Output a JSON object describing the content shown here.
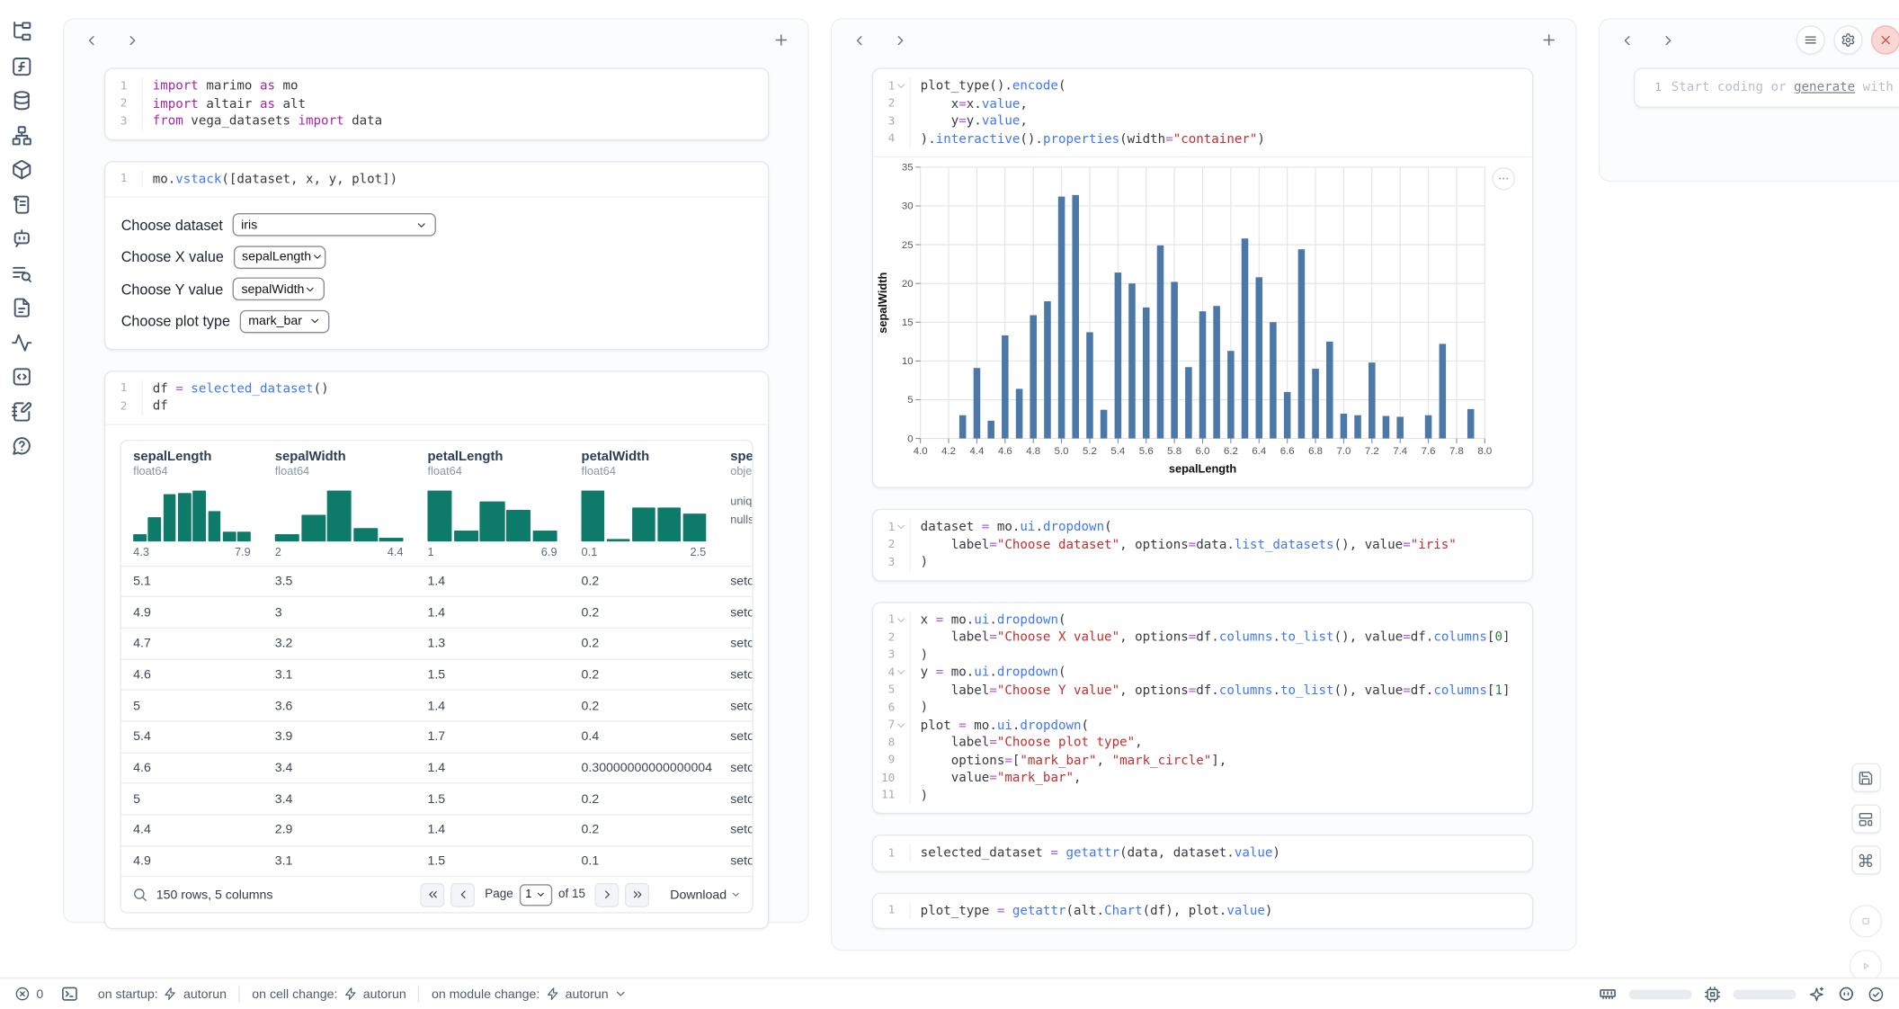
{
  "sidebar": {
    "icons": [
      "file-tree",
      "function-square",
      "database",
      "workflow",
      "package",
      "scroll-text",
      "bot",
      "list-search",
      "file-text",
      "activity",
      "code-square",
      "notebook-pen",
      "help-circle"
    ]
  },
  "panels": {
    "left": {
      "cells": [
        {
          "lines": [
            [
              [
                "kw",
                "import"
              ],
              [
                "pl",
                " marimo "
              ],
              [
                "kw",
                "as"
              ],
              [
                "pl",
                " mo"
              ]
            ],
            [
              [
                "kw",
                "import"
              ],
              [
                "pl",
                " altair "
              ],
              [
                "kw",
                "as"
              ],
              [
                "pl",
                " alt"
              ]
            ],
            [
              [
                "kw",
                "from"
              ],
              [
                "pl",
                " vega_datasets "
              ],
              [
                "kw",
                "import"
              ],
              [
                "pl",
                " data"
              ]
            ]
          ]
        },
        {
          "lines": [
            [
              [
                "pl",
                "mo."
              ],
              [
                "fn",
                "vstack"
              ],
              [
                "pl",
                "([dataset, x, y, plot])"
              ]
            ]
          ]
        },
        {
          "lines": [
            [
              [
                "pl",
                "df "
              ],
              [
                "op",
                "="
              ],
              [
                "pl",
                " "
              ],
              [
                "fn",
                "selected_dataset"
              ],
              [
                "pl",
                "()"
              ]
            ],
            [
              [
                "pl",
                "df"
              ]
            ]
          ]
        }
      ],
      "controls": [
        {
          "label": "Choose dataset",
          "value": "iris"
        },
        {
          "label": "Choose X value",
          "value": "sepalLength"
        },
        {
          "label": "Choose Y value",
          "value": "sepalWidth"
        },
        {
          "label": "Choose plot type",
          "value": "mark_bar"
        }
      ],
      "table": {
        "columns": [
          {
            "name": "sepalLength",
            "dtype": "float64",
            "min": "4.3",
            "max": "7.9",
            "hist": [
              13,
              45,
              88,
              90,
              95,
              55,
              18,
              17
            ]
          },
          {
            "name": "sepalWidth",
            "dtype": "float64",
            "min": "2",
            "max": "4.4",
            "hist": [
              12,
              48,
              95,
              25,
              5
            ]
          },
          {
            "name": "petalLength",
            "dtype": "float64",
            "min": "1",
            "max": "6.9",
            "hist": [
              95,
              20,
              75,
              58,
              20
            ]
          },
          {
            "name": "petalWidth",
            "dtype": "float64",
            "min": "0.1",
            "max": "2.5",
            "hist": [
              95,
              4,
              62,
              62,
              52
            ]
          },
          {
            "name": "species",
            "dtype": "object",
            "meta": [
              "unique:",
              "nulls:"
            ]
          }
        ],
        "rows": [
          [
            "5.1",
            "3.5",
            "1.4",
            "0.2",
            "setosa"
          ],
          [
            "4.9",
            "3",
            "1.4",
            "0.2",
            "setosa"
          ],
          [
            "4.7",
            "3.2",
            "1.3",
            "0.2",
            "setosa"
          ],
          [
            "4.6",
            "3.1",
            "1.5",
            "0.2",
            "setosa"
          ],
          [
            "5",
            "3.6",
            "1.4",
            "0.2",
            "setosa"
          ],
          [
            "5.4",
            "3.9",
            "1.7",
            "0.4",
            "setosa"
          ],
          [
            "4.6",
            "3.4",
            "1.4",
            "0.30000000000000004",
            "setosa"
          ],
          [
            "5",
            "3.4",
            "1.5",
            "0.2",
            "setosa"
          ],
          [
            "4.4",
            "2.9",
            "1.4",
            "0.2",
            "setosa"
          ],
          [
            "4.9",
            "3.1",
            "1.5",
            "0.1",
            "setosa"
          ]
        ],
        "footer": {
          "summary": "150 rows, 5 columns",
          "page_label": "Page",
          "page_value": "1",
          "of_label": "of 15",
          "download_label": "Download"
        }
      }
    },
    "middle": {
      "cells": [
        {
          "folds": [
            1
          ],
          "lines": [
            [
              [
                "pl",
                "plot_type()."
              ],
              [
                "fn",
                "encode"
              ],
              [
                "pl",
                "("
              ]
            ],
            [
              [
                "pl",
                "    x"
              ],
              [
                "op",
                "="
              ],
              [
                "pl",
                "x."
              ],
              [
                "fn",
                "value"
              ],
              [
                "pl",
                ","
              ]
            ],
            [
              [
                "pl",
                "    y"
              ],
              [
                "op",
                "="
              ],
              [
                "pl",
                "y."
              ],
              [
                "fn",
                "value"
              ],
              [
                "pl",
                ","
              ]
            ],
            [
              [
                "pl",
                ")."
              ],
              [
                "fn",
                "interactive"
              ],
              [
                "pl",
                "()."
              ],
              [
                "fn",
                "properties"
              ],
              [
                "pl",
                "(width"
              ],
              [
                "op",
                "="
              ],
              [
                "str",
                "\"container\""
              ],
              [
                "pl",
                ")"
              ]
            ]
          ]
        },
        {
          "folds": [
            1
          ],
          "lines": [
            [
              [
                "pl",
                "dataset "
              ],
              [
                "op",
                "="
              ],
              [
                "pl",
                " mo."
              ],
              [
                "fn",
                "ui"
              ],
              [
                "pl",
                "."
              ],
              [
                "fn",
                "dropdown"
              ],
              [
                "pl",
                "("
              ]
            ],
            [
              [
                "pl",
                "    label"
              ],
              [
                "op",
                "="
              ],
              [
                "str",
                "\"Choose dataset\""
              ],
              [
                "pl",
                ", options"
              ],
              [
                "op",
                "="
              ],
              [
                "pl",
                "data."
              ],
              [
                "fn",
                "list_datasets"
              ],
              [
                "pl",
                "(), value"
              ],
              [
                "op",
                "="
              ],
              [
                "str",
                "\"iris\""
              ]
            ],
            [
              [
                "pl",
                ")"
              ]
            ]
          ]
        },
        {
          "folds": [
            1,
            4,
            7
          ],
          "lines": [
            [
              [
                "pl",
                "x "
              ],
              [
                "op",
                "="
              ],
              [
                "pl",
                " mo."
              ],
              [
                "fn",
                "ui"
              ],
              [
                "pl",
                "."
              ],
              [
                "fn",
                "dropdown"
              ],
              [
                "pl",
                "("
              ]
            ],
            [
              [
                "pl",
                "    label"
              ],
              [
                "op",
                "="
              ],
              [
                "str",
                "\"Choose X value\""
              ],
              [
                "pl",
                ", options"
              ],
              [
                "op",
                "="
              ],
              [
                "pl",
                "df."
              ],
              [
                "fn",
                "columns"
              ],
              [
                "pl",
                "."
              ],
              [
                "fn",
                "to_list"
              ],
              [
                "pl",
                "(), value"
              ],
              [
                "op",
                "="
              ],
              [
                "pl",
                "df."
              ],
              [
                "fn",
                "columns"
              ],
              [
                "pl",
                "["
              ],
              [
                "num",
                "0"
              ],
              [
                "pl",
                "]"
              ]
            ],
            [
              [
                "pl",
                ")"
              ]
            ],
            [
              [
                "pl",
                "y "
              ],
              [
                "op",
                "="
              ],
              [
                "pl",
                " mo."
              ],
              [
                "fn",
                "ui"
              ],
              [
                "pl",
                "."
              ],
              [
                "fn",
                "dropdown"
              ],
              [
                "pl",
                "("
              ]
            ],
            [
              [
                "pl",
                "    label"
              ],
              [
                "op",
                "="
              ],
              [
                "str",
                "\"Choose Y value\""
              ],
              [
                "pl",
                ", options"
              ],
              [
                "op",
                "="
              ],
              [
                "pl",
                "df."
              ],
              [
                "fn",
                "columns"
              ],
              [
                "pl",
                "."
              ],
              [
                "fn",
                "to_list"
              ],
              [
                "pl",
                "(), value"
              ],
              [
                "op",
                "="
              ],
              [
                "pl",
                "df."
              ],
              [
                "fn",
                "columns"
              ],
              [
                "pl",
                "["
              ],
              [
                "num",
                "1"
              ],
              [
                "pl",
                "]"
              ]
            ],
            [
              [
                "pl",
                ")"
              ]
            ],
            [
              [
                "pl",
                "plot "
              ],
              [
                "op",
                "="
              ],
              [
                "pl",
                " mo."
              ],
              [
                "fn",
                "ui"
              ],
              [
                "pl",
                "."
              ],
              [
                "fn",
                "dropdown"
              ],
              [
                "pl",
                "("
              ]
            ],
            [
              [
                "pl",
                "    label"
              ],
              [
                "op",
                "="
              ],
              [
                "str",
                "\"Choose plot type\""
              ],
              [
                "pl",
                ","
              ]
            ],
            [
              [
                "pl",
                "    options"
              ],
              [
                "op",
                "="
              ],
              [
                "pl",
                "["
              ],
              [
                "str",
                "\"mark_bar\""
              ],
              [
                "pl",
                ", "
              ],
              [
                "str",
                "\"mark_circle\""
              ],
              [
                "pl",
                "],"
              ]
            ],
            [
              [
                "pl",
                "    value"
              ],
              [
                "op",
                "="
              ],
              [
                "str",
                "\"mark_bar\""
              ],
              [
                "pl",
                ","
              ]
            ],
            [
              [
                "pl",
                ")"
              ]
            ]
          ]
        },
        {
          "lines": [
            [
              [
                "pl",
                "selected_dataset "
              ],
              [
                "op",
                "="
              ],
              [
                "pl",
                " "
              ],
              [
                "fn",
                "getattr"
              ],
              [
                "pl",
                "(data, dataset."
              ],
              [
                "fn",
                "value"
              ],
              [
                "pl",
                ")"
              ]
            ]
          ]
        },
        {
          "lines": [
            [
              [
                "pl",
                "plot_type "
              ],
              [
                "op",
                "="
              ],
              [
                "pl",
                " "
              ],
              [
                "fn",
                "getattr"
              ],
              [
                "pl",
                "(alt."
              ],
              [
                "fn",
                "Chart"
              ],
              [
                "pl",
                "(df), plot."
              ],
              [
                "fn",
                "value"
              ],
              [
                "pl",
                ")"
              ]
            ]
          ]
        }
      ]
    },
    "right": {
      "editor_line": "1",
      "placeholder_prefix": "Start coding or ",
      "placeholder_link": "generate",
      "placeholder_suffix": " with AI"
    }
  },
  "chart_data": {
    "type": "bar",
    "title": "",
    "xlabel": "sepalLength",
    "ylabel": "sepalWidth",
    "xlim": [
      4.0,
      8.0
    ],
    "ylim": [
      0,
      35
    ],
    "x_ticks": [
      "4.0",
      "4.2",
      "4.4",
      "4.6",
      "4.8",
      "5.0",
      "5.2",
      "5.4",
      "5.6",
      "5.8",
      "6.0",
      "6.2",
      "6.4",
      "6.6",
      "6.8",
      "7.0",
      "7.2",
      "7.4",
      "7.6",
      "7.8",
      "8.0"
    ],
    "y_ticks": [
      0,
      5,
      10,
      15,
      20,
      25,
      30,
      35
    ],
    "bar_color": "#4c78a8",
    "grid": true,
    "x": [
      4.3,
      4.4,
      4.5,
      4.6,
      4.7,
      4.8,
      4.9,
      5.0,
      5.1,
      5.2,
      5.3,
      5.4,
      5.5,
      5.6,
      5.7,
      5.8,
      5.9,
      6.0,
      6.1,
      6.2,
      6.3,
      6.4,
      6.5,
      6.6,
      6.7,
      6.8,
      6.9,
      7.0,
      7.1,
      7.2,
      7.3,
      7.4,
      7.6,
      7.7,
      7.9
    ],
    "y": [
      3.0,
      9.1,
      2.3,
      13.3,
      6.4,
      15.9,
      17.7,
      31.2,
      31.4,
      13.7,
      3.7,
      21.4,
      20.0,
      16.9,
      24.9,
      20.2,
      9.2,
      16.4,
      17.1,
      11.3,
      25.8,
      20.8,
      15.0,
      6.0,
      24.4,
      9.0,
      12.5,
      3.2,
      3.0,
      9.8,
      2.9,
      2.8,
      3.0,
      12.2,
      3.8
    ]
  },
  "statusbar": {
    "errors_count": "0",
    "groups": [
      {
        "label": "on startup:",
        "value": "autorun"
      },
      {
        "label": "on cell change:",
        "value": "autorun"
      },
      {
        "label": "on module change:",
        "value": "autorun"
      }
    ],
    "resources": {
      "memory_pct": 66,
      "cpu_pct": 22
    }
  },
  "colors": {
    "accent_blue": "#2b7cf0",
    "histogram_teal": "#0e7a6a",
    "bar_blue": "#4c78a8",
    "danger_red": "#d64949"
  }
}
